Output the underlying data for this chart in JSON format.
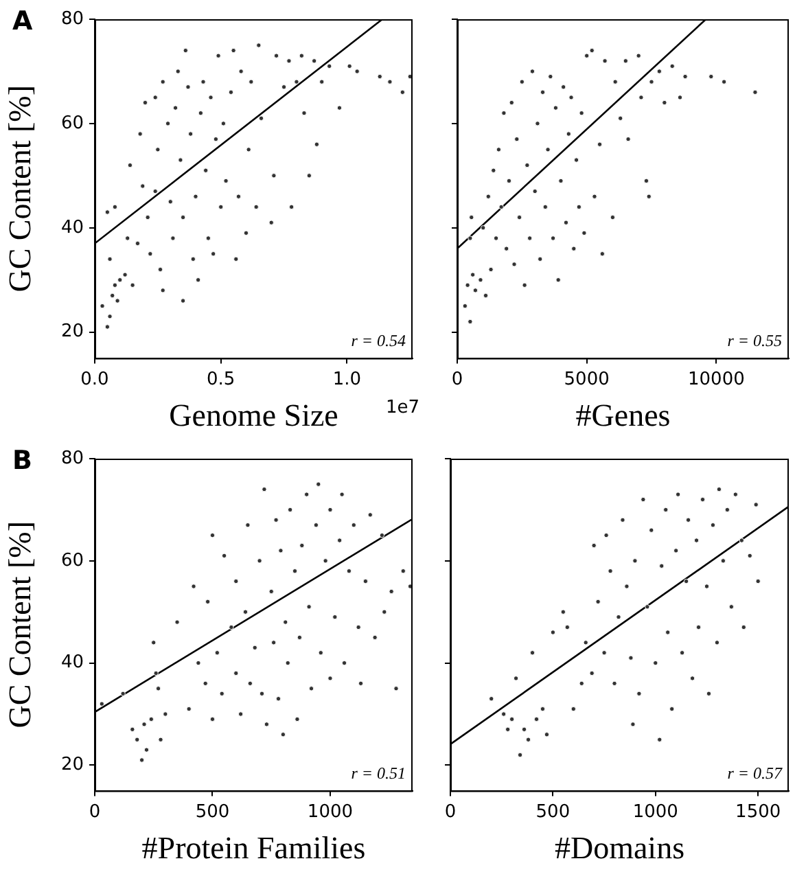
{
  "chart_data": [
    {
      "type": "scatter",
      "xlabel": "Genome Size",
      "ylabel": "GC Content [%]",
      "xlim": [
        0,
        1.26
      ],
      "xticks": [
        {
          "value": 0,
          "label": "0.0"
        },
        0.5,
        {
          "value": 1,
          "label": "1.0"
        }
      ],
      "ylim": [
        15,
        80
      ],
      "yticks": [
        20,
        40,
        60,
        80
      ],
      "grid": false,
      "marker": "circle",
      "annotations": [
        "r = 0.54",
        "A",
        "1e7"
      ],
      "series": [
        {
          "color": "#333333",
          "x": [
            0.03,
            0.05,
            0.06,
            0.07,
            0.08,
            0.09,
            0.1,
            0.06,
            0.08,
            0.05,
            0.12,
            0.13,
            0.14,
            0.15,
            0.17,
            0.18,
            0.2,
            0.19,
            0.21,
            0.22,
            0.24,
            0.25,
            0.24,
            0.26,
            0.27,
            0.27,
            0.29,
            0.3,
            0.31,
            0.32,
            0.33,
            0.34,
            0.35,
            0.35,
            0.36,
            0.37,
            0.38,
            0.39,
            0.4,
            0.41,
            0.42,
            0.43,
            0.44,
            0.45,
            0.46,
            0.47,
            0.48,
            0.49,
            0.5,
            0.51,
            0.52,
            0.54,
            0.55,
            0.56,
            0.57,
            0.58,
            0.6,
            0.61,
            0.62,
            0.64,
            0.65,
            0.66,
            0.7,
            0.71,
            0.72,
            0.75,
            0.77,
            0.78,
            0.8,
            0.82,
            0.83,
            0.85,
            0.87,
            0.88,
            0.9,
            0.93,
            0.97,
            1.01,
            1.04,
            1.13,
            1.17,
            1.22,
            1.25
          ],
          "values": [
            25,
            21,
            23,
            27,
            29,
            26,
            30,
            34,
            44,
            43,
            31,
            38,
            52,
            29,
            37,
            58,
            64,
            48,
            42,
            35,
            65,
            55,
            47,
            32,
            28,
            68,
            60,
            45,
            38,
            63,
            70,
            53,
            26,
            42,
            74,
            67,
            58,
            34,
            46,
            30,
            62,
            68,
            51,
            38,
            65,
            35,
            57,
            73,
            44,
            60,
            49,
            66,
            74,
            34,
            46,
            70,
            39,
            55,
            68,
            44,
            75,
            61,
            41,
            50,
            73,
            67,
            72,
            44,
            68,
            73,
            62,
            50,
            72,
            56,
            68,
            71,
            63,
            71,
            70,
            69,
            68,
            66,
            69
          ]
        },
        {
          "type": "line",
          "color": "#000000",
          "marker": "none",
          "x": [
            0,
            1.14
          ],
          "values": [
            37,
            80
          ]
        }
      ]
    },
    {
      "type": "scatter",
      "xlabel": "#Genes",
      "xlim": [
        0,
        12800
      ],
      "xticks": [
        0,
        5000,
        10000
      ],
      "ylim": [
        15,
        80
      ],
      "yticks": [
        20,
        40,
        60,
        80
      ],
      "tick_labels": "x",
      "grid": false,
      "marker": "circle",
      "annotations": [
        "r = 0.55"
      ],
      "series": [
        {
          "color": "#333333",
          "x": [
            500,
            300,
            400,
            600,
            700,
            500,
            550,
            900,
            1000,
            1100,
            1200,
            1300,
            1400,
            1500,
            1600,
            1700,
            1800,
            1900,
            2000,
            2100,
            2200,
            2300,
            2400,
            2500,
            2600,
            2700,
            2800,
            2900,
            3000,
            3100,
            3200,
            3300,
            3400,
            3500,
            3600,
            3700,
            3800,
            3900,
            4000,
            4100,
            4200,
            4300,
            4400,
            4500,
            4600,
            4700,
            4800,
            4900,
            5000,
            5200,
            5300,
            5500,
            5600,
            5700,
            6000,
            6100,
            6300,
            6500,
            6600,
            7000,
            7100,
            7300,
            7400,
            7500,
            7800,
            8000,
            8300,
            8600,
            8800,
            9800,
            10300,
            11500
          ],
          "values": [
            22,
            25,
            29,
            31,
            28,
            38,
            42,
            30,
            40,
            27,
            46,
            32,
            51,
            38,
            55,
            44,
            62,
            36,
            49,
            64,
            33,
            57,
            42,
            68,
            29,
            52,
            38,
            70,
            47,
            60,
            34,
            66,
            44,
            55,
            69,
            38,
            63,
            30,
            49,
            67,
            41,
            58,
            65,
            36,
            53,
            44,
            62,
            39,
            73,
            74,
            46,
            56,
            35,
            72,
            42,
            68,
            61,
            72,
            57,
            73,
            65,
            49,
            46,
            68,
            70,
            64,
            71,
            65,
            69,
            69,
            68,
            66
          ]
        },
        {
          "type": "line",
          "color": "#000000",
          "marker": "none",
          "x": [
            0,
            9600
          ],
          "values": [
            36,
            80
          ]
        }
      ]
    },
    {
      "type": "scatter",
      "xlabel": "#Protein Families",
      "ylabel": "GC Content [%]",
      "xlim": [
        0,
        1350
      ],
      "xticks": [
        0,
        500,
        1000
      ],
      "ylim": [
        15,
        80
      ],
      "yticks": [
        20,
        40,
        60,
        80
      ],
      "grid": false,
      "marker": "circle",
      "annotations": [
        "r = 0.51",
        "B"
      ],
      "series": [
        {
          "color": "#333333",
          "x": [
            30,
            120,
            160,
            180,
            200,
            210,
            220,
            240,
            250,
            260,
            270,
            280,
            300,
            350,
            400,
            420,
            440,
            470,
            480,
            500,
            500,
            520,
            540,
            550,
            580,
            600,
            600,
            620,
            640,
            650,
            660,
            680,
            700,
            710,
            720,
            730,
            750,
            760,
            770,
            780,
            790,
            800,
            810,
            820,
            830,
            850,
            860,
            870,
            880,
            900,
            910,
            920,
            940,
            950,
            960,
            980,
            1000,
            1000,
            1020,
            1040,
            1050,
            1060,
            1080,
            1100,
            1120,
            1130,
            1150,
            1170,
            1190,
            1220,
            1230,
            1260,
            1280,
            1310,
            1340
          ],
          "values": [
            32,
            34,
            27,
            25,
            21,
            28,
            23,
            29,
            44,
            38,
            35,
            25,
            30,
            48,
            31,
            55,
            40,
            36,
            52,
            65,
            29,
            42,
            34,
            61,
            47,
            56,
            38,
            30,
            50,
            67,
            36,
            43,
            60,
            34,
            74,
            28,
            54,
            44,
            68,
            33,
            62,
            26,
            48,
            40,
            70,
            58,
            29,
            45,
            63,
            73,
            51,
            35,
            67,
            75,
            42,
            60,
            70,
            37,
            49,
            64,
            73,
            40,
            58,
            67,
            47,
            36,
            56,
            69,
            45,
            65,
            50,
            54,
            35,
            58,
            55
          ]
        },
        {
          "type": "line",
          "color": "#000000",
          "marker": "none",
          "x": [
            0,
            1350
          ],
          "values": [
            30.4,
            68.2
          ]
        }
      ]
    },
    {
      "type": "scatter",
      "xlabel": "#Domains",
      "xlim": [
        0,
        1650
      ],
      "xticks": [
        0,
        500,
        1000,
        1500
      ],
      "ylim": [
        15,
        80
      ],
      "yticks": [
        20,
        40,
        60,
        80
      ],
      "tick_labels": "x",
      "grid": false,
      "marker": "circle",
      "annotations": [
        "r = 0.57"
      ],
      "series": [
        {
          "color": "#333333",
          "x": [
            200,
            260,
            280,
            300,
            320,
            340,
            360,
            380,
            400,
            420,
            450,
            470,
            500,
            550,
            570,
            600,
            640,
            660,
            690,
            700,
            720,
            750,
            760,
            780,
            800,
            820,
            840,
            860,
            880,
            890,
            900,
            920,
            940,
            960,
            980,
            1000,
            1020,
            1030,
            1050,
            1060,
            1080,
            1100,
            1110,
            1130,
            1150,
            1160,
            1180,
            1200,
            1210,
            1230,
            1250,
            1260,
            1280,
            1300,
            1310,
            1330,
            1350,
            1370,
            1390,
            1420,
            1430,
            1460,
            1490,
            1500
          ],
          "values": [
            33,
            30,
            27,
            29,
            37,
            22,
            27,
            25,
            42,
            29,
            31,
            26,
            46,
            50,
            47,
            31,
            36,
            44,
            38,
            63,
            52,
            42,
            65,
            58,
            36,
            49,
            68,
            55,
            41,
            28,
            60,
            34,
            72,
            51,
            66,
            40,
            25,
            59,
            70,
            46,
            31,
            62,
            73,
            42,
            56,
            68,
            37,
            64,
            47,
            72,
            55,
            34,
            67,
            44,
            74,
            60,
            70,
            51,
            73,
            64,
            47,
            61,
            71,
            56
          ]
        },
        {
          "type": "line",
          "color": "#000000",
          "marker": "none",
          "x": [
            0,
            1645
          ],
          "values": [
            24.1,
            70.5
          ]
        }
      ]
    }
  ]
}
